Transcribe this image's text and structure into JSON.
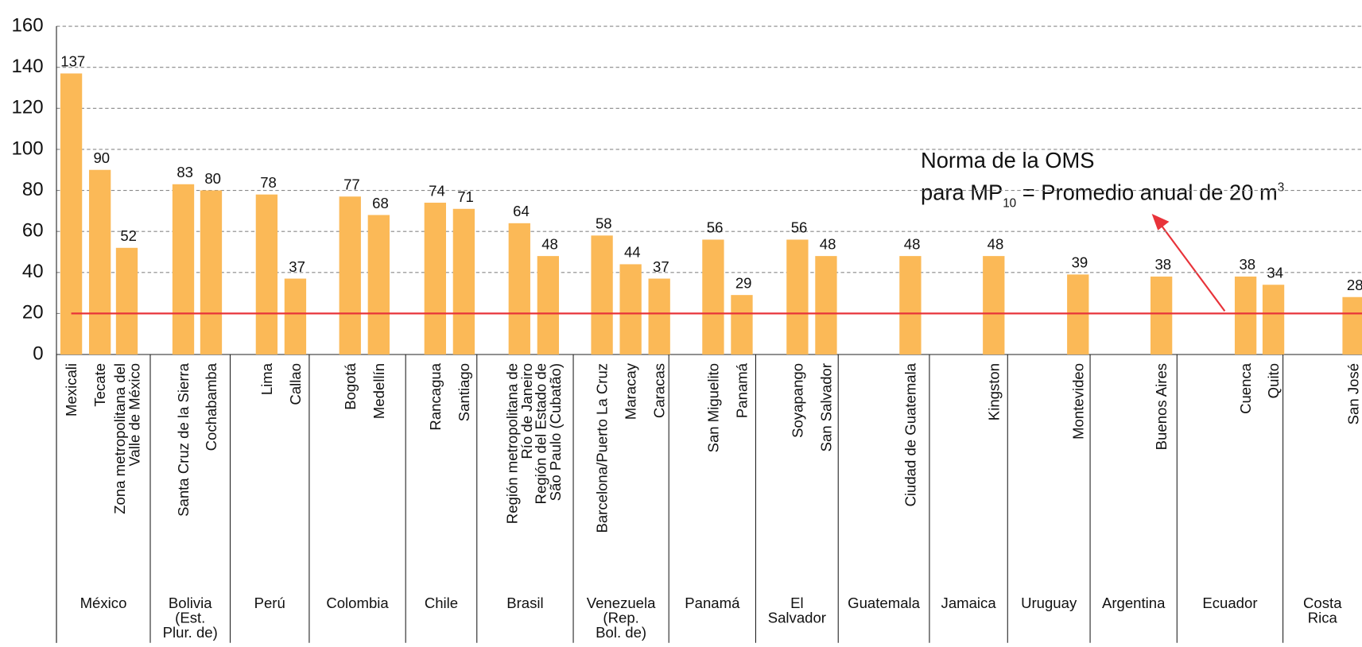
{
  "chart_data": {
    "type": "bar",
    "categories": [
      "Mexicali",
      "Tecate",
      "Zona metropolitana del\nValle de México",
      "Santa Cruz de la Sierra",
      "Cochabamba",
      "Lima",
      "Callao",
      "Bogotá",
      "Medellín",
      "Rancagua",
      "Santiago",
      "Región metropolitana de\nRío de Janeiro",
      "Región del Estado de\nSão Paulo (Cubatão)",
      "Barcelona/Puerto La Cruz",
      "Maracay",
      "Caracas",
      "San Miguelito",
      "Panamá",
      "Soyapango",
      "San Salvador",
      "Ciudad de Guatemala",
      "Kingston",
      "Montevideo",
      "Buenos Aires",
      "Cuenca",
      "Quito",
      "San José"
    ],
    "values": [
      137,
      90,
      52,
      83,
      80,
      78,
      37,
      77,
      68,
      74,
      71,
      64,
      48,
      58,
      44,
      37,
      56,
      29,
      56,
      48,
      48,
      48,
      39,
      38,
      38,
      34,
      28
    ],
    "groups": [
      {
        "name": "México",
        "count": 3
      },
      {
        "name": "Bolivia\n(Est.\nPlur. de)",
        "count": 2
      },
      {
        "name": "Perú",
        "count": 2
      },
      {
        "name": "Colombia",
        "count": 2
      },
      {
        "name": "Chile",
        "count": 2
      },
      {
        "name": "Brasil",
        "count": 2
      },
      {
        "name": "Venezuela\n(Rep.\nBol. de)",
        "count": 3
      },
      {
        "name": "Panamá",
        "count": 2
      },
      {
        "name": "El\nSalvador",
        "count": 2
      },
      {
        "name": "Guatemala",
        "count": 1
      },
      {
        "name": "Jamaica",
        "count": 1
      },
      {
        "name": "Uruguay",
        "count": 1
      },
      {
        "name": "Argentina",
        "count": 1
      },
      {
        "name": "Ecuador",
        "count": 2
      },
      {
        "name": "Costa\nRica",
        "count": 1
      }
    ],
    "color": "#fbb957",
    "ylim": [
      0,
      160
    ],
    "yticks": [
      0,
      20,
      40,
      60,
      80,
      100,
      120,
      140,
      160
    ],
    "grid": true,
    "reference_line": {
      "value": 20,
      "color": "#e8333a"
    },
    "annotation": {
      "line1": "Norma de la OMS",
      "line2": [
        "para MP",
        "10",
        " = Promedio anual de 20 m",
        "3"
      ]
    }
  }
}
